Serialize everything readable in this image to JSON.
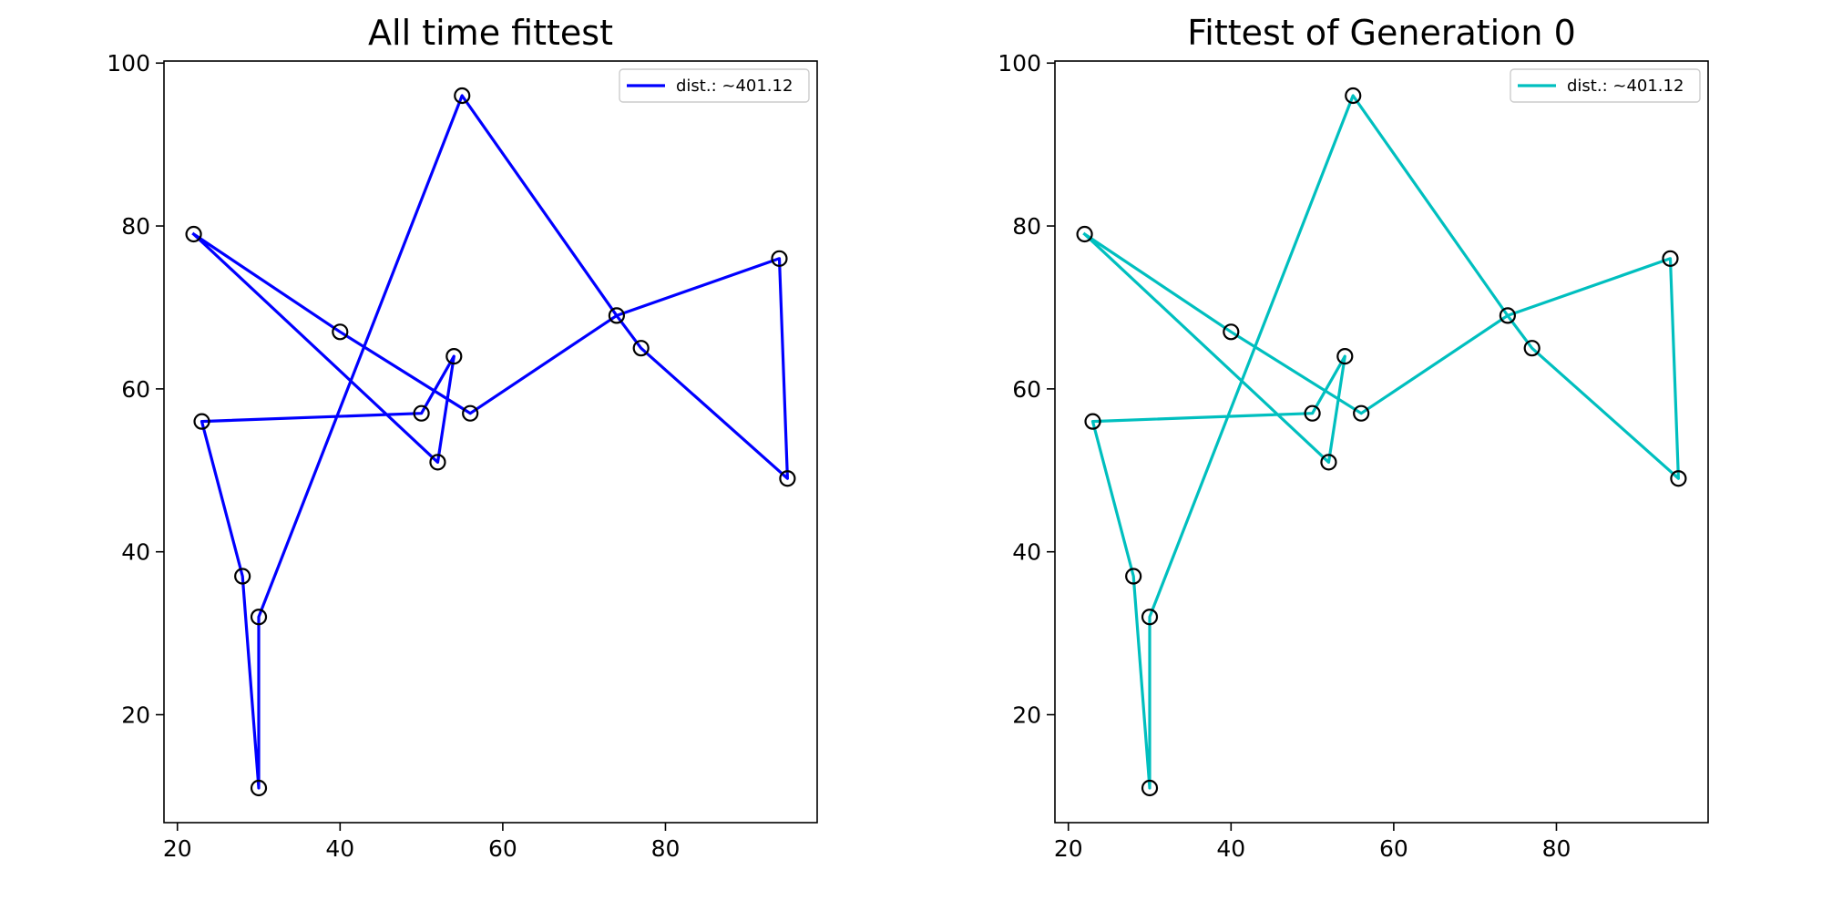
{
  "chart_data": [
    {
      "type": "line",
      "title": "All time fittest",
      "xlabel": "",
      "ylabel": "",
      "xlim": [
        18.35,
        98.65
      ],
      "ylim": [
        6.75,
        100.25
      ],
      "x_ticks": [
        20,
        40,
        60,
        80
      ],
      "y_ticks": [
        20,
        40,
        60,
        80,
        100
      ],
      "grid": false,
      "legend_position": "top-right",
      "series": [
        {
          "name": "dist.: ~401.12",
          "color": "#0000ff",
          "x": [
            22,
            40,
            56,
            74,
            77,
            95,
            94,
            74,
            55,
            30,
            30,
            28,
            23,
            50,
            54,
            52,
            22
          ],
          "y": [
            79,
            67,
            57,
            69,
            65,
            49,
            76,
            69,
            96,
            32,
            11,
            37,
            56,
            57,
            64,
            51,
            79
          ]
        }
      ],
      "points": {
        "x": [
          22,
          40,
          56,
          74,
          77,
          95,
          94,
          55,
          30,
          30,
          28,
          23,
          50,
          54,
          52
        ],
        "y": [
          79,
          67,
          57,
          69,
          65,
          49,
          76,
          96,
          32,
          11,
          37,
          56,
          57,
          64,
          51
        ]
      }
    },
    {
      "type": "line",
      "title": "Fittest of Generation 0",
      "xlabel": "",
      "ylabel": "",
      "xlim": [
        18.35,
        98.65
      ],
      "ylim": [
        6.75,
        100.25
      ],
      "x_ticks": [
        20,
        40,
        60,
        80
      ],
      "y_ticks": [
        20,
        40,
        60,
        80,
        100
      ],
      "grid": false,
      "legend_position": "top-right",
      "series": [
        {
          "name": "dist.: ~401.12",
          "color": "#00bfbf",
          "x": [
            22,
            40,
            56,
            74,
            77,
            95,
            94,
            74,
            55,
            30,
            30,
            28,
            23,
            50,
            54,
            52,
            22
          ],
          "y": [
            79,
            67,
            57,
            69,
            65,
            49,
            76,
            69,
            96,
            32,
            11,
            37,
            56,
            57,
            64,
            51,
            79
          ]
        }
      ],
      "points": {
        "x": [
          22,
          40,
          56,
          74,
          77,
          95,
          94,
          55,
          30,
          30,
          28,
          23,
          50,
          54,
          52
        ],
        "y": [
          79,
          67,
          57,
          69,
          65,
          49,
          76,
          96,
          32,
          11,
          37,
          56,
          57,
          64,
          51
        ]
      }
    }
  ]
}
